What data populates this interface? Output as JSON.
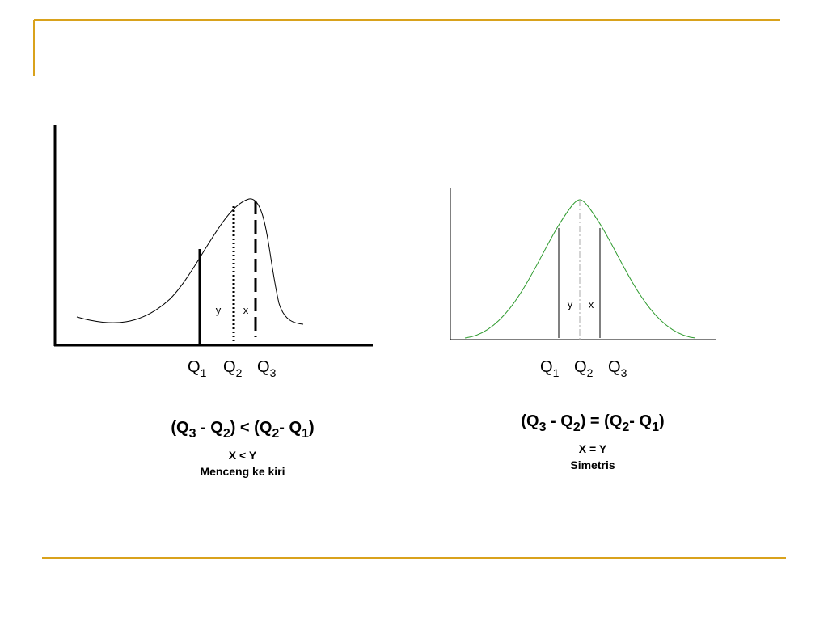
{
  "left": {
    "inner_labels": [
      "y",
      "x"
    ],
    "quartile_labels": [
      [
        "Q",
        "1"
      ],
      [
        "Q",
        "2"
      ],
      [
        "Q",
        "3"
      ]
    ],
    "formula": [
      [
        "(Q",
        "3"
      ],
      [
        " - Q",
        "2"
      ],
      [
        ") < (Q",
        "2"
      ],
      [
        "- Q",
        "1"
      ],
      [
        ")",
        ""
      ]
    ],
    "caption": [
      "X < Y",
      "Menceng ke kiri"
    ]
  },
  "right": {
    "inner_labels": [
      "y",
      "x"
    ],
    "quartile_labels": [
      [
        "Q",
        "1"
      ],
      [
        "Q",
        "2"
      ],
      [
        "Q",
        "3"
      ]
    ],
    "formula": [
      [
        "(Q",
        "3"
      ],
      [
        " - Q",
        "2"
      ],
      [
        ") = (Q",
        "2"
      ],
      [
        "- Q",
        "1"
      ],
      [
        ")",
        ""
      ]
    ],
    "caption": [
      "X = Y",
      "Simetris"
    ]
  }
}
